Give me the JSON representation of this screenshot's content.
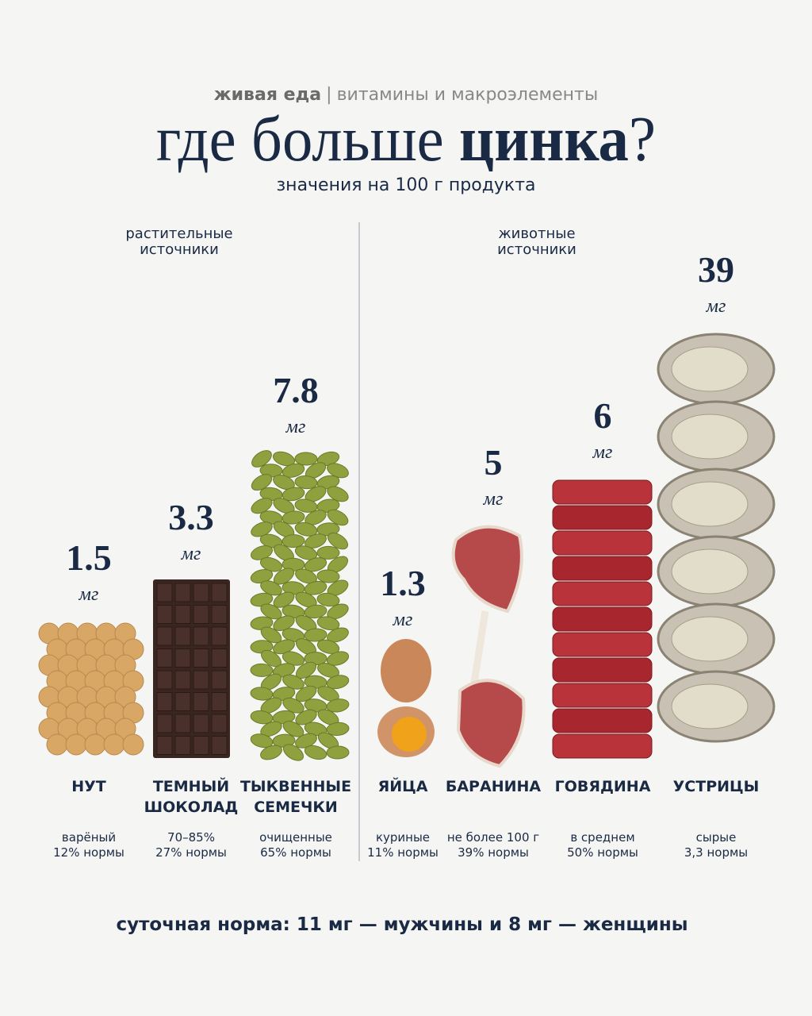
{
  "header": {
    "brand": "живая еда",
    "separator": "|",
    "topic": "витамины и макроэлементы"
  },
  "title": {
    "part1": "где больше",
    "part2": "цинка",
    "part3": "?"
  },
  "subtitle": "значения на 100 г продукта",
  "groups": [
    {
      "line1": "растительные",
      "line2": "источники"
    },
    {
      "line1": "животные",
      "line2": "источники"
    }
  ],
  "items": [
    {
      "value": "1.5",
      "unit": "мг",
      "name1": "НУТ",
      "note1": "варёный",
      "note2": "12% нормы"
    },
    {
      "value": "3.3",
      "unit": "мг",
      "name1": "ТЕМНЫЙ",
      "name2": "ШОКОЛАД",
      "note1": "70–85%",
      "note2": "27% нормы"
    },
    {
      "value": "7.8",
      "unit": "мг",
      "name1": "ТЫКВЕННЫЕ",
      "name2": "СЕМЕЧКИ",
      "note1": "очищенные",
      "note2": "65% нормы"
    },
    {
      "value": "1.3",
      "unit": "мг",
      "name1": "ЯЙЦА",
      "note1": "куриные",
      "note2": "11% нормы"
    },
    {
      "value": "5",
      "unit": "мг",
      "name1": "БАРАНИНА",
      "note1": "не более 100 г",
      "note2": "39% нормы"
    },
    {
      "value": "6",
      "unit": "мг",
      "name1": "ГОВЯДИНА",
      "note1": "в среднем",
      "note2": "50% нормы"
    },
    {
      "value": "39",
      "unit": "мг",
      "name1": "УСТРИЦЫ",
      "note1": "сырые",
      "note2": "3,3 нормы"
    }
  ],
  "footer": "суточная норма: 11 мг — мужчины и 8 мг — женщины"
}
